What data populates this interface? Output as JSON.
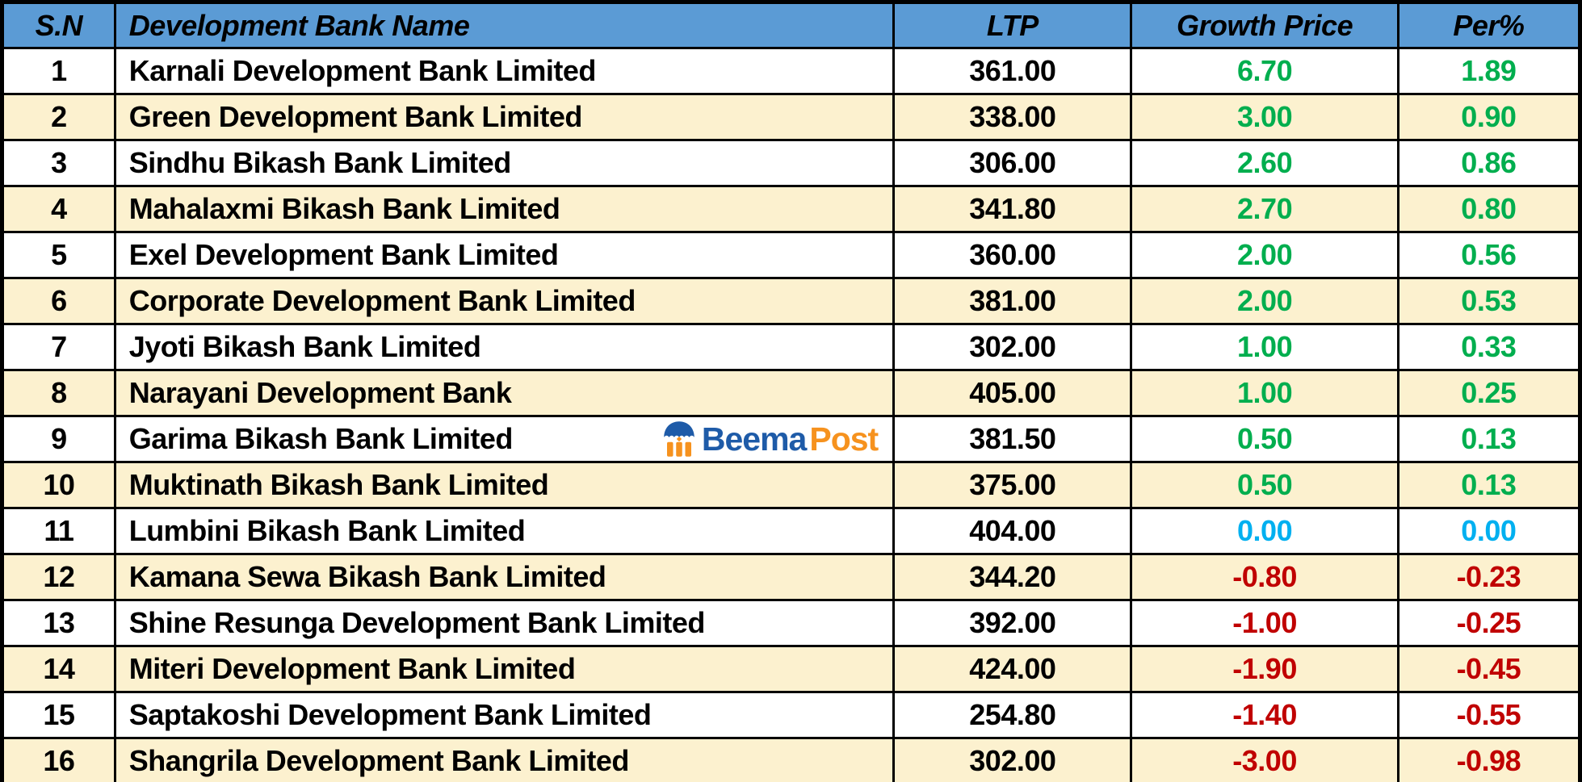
{
  "chart_data": {
    "type": "table",
    "title": "Development Bank LTP / Growth Price table",
    "columns": [
      "S.N",
      "Development Bank Name",
      "LTP",
      "Growth Price",
      "Per%"
    ],
    "rows": [
      {
        "sn": "1",
        "name": "Karnali Development Bank Limited",
        "ltp": "361.00",
        "growth": "6.70",
        "per": "1.89",
        "trend": "up"
      },
      {
        "sn": "2",
        "name": "Green Development Bank Limited",
        "ltp": "338.00",
        "growth": "3.00",
        "per": "0.90",
        "trend": "up"
      },
      {
        "sn": "3",
        "name": "Sindhu Bikash Bank Limited",
        "ltp": "306.00",
        "growth": "2.60",
        "per": "0.86",
        "trend": "up"
      },
      {
        "sn": "4",
        "name": "Mahalaxmi Bikash Bank Limited",
        "ltp": "341.80",
        "growth": "2.70",
        "per": "0.80",
        "trend": "up"
      },
      {
        "sn": "5",
        "name": "Exel Development Bank Limited",
        "ltp": "360.00",
        "growth": "2.00",
        "per": "0.56",
        "trend": "up"
      },
      {
        "sn": "6",
        "name": "Corporate Development Bank Limited",
        "ltp": "381.00",
        "growth": "2.00",
        "per": "0.53",
        "trend": "up"
      },
      {
        "sn": "7",
        "name": "Jyoti Bikash Bank Limited",
        "ltp": "302.00",
        "growth": "1.00",
        "per": "0.33",
        "trend": "up"
      },
      {
        "sn": "8",
        "name": "Narayani Development Bank",
        "ltp": "405.00",
        "growth": "1.00",
        "per": "0.25",
        "trend": "up"
      },
      {
        "sn": "9",
        "name": "Garima Bikash Bank Limited",
        "ltp": "381.50",
        "growth": "0.50",
        "per": "0.13",
        "trend": "up"
      },
      {
        "sn": "10",
        "name": "Muktinath Bikash Bank Limited",
        "ltp": "375.00",
        "growth": "0.50",
        "per": "0.13",
        "trend": "up"
      },
      {
        "sn": "11",
        "name": "Lumbini Bikash Bank Limited",
        "ltp": "404.00",
        "growth": "0.00",
        "per": "0.00",
        "trend": "zero"
      },
      {
        "sn": "12",
        "name": "Kamana Sewa Bikash Bank Limited",
        "ltp": "344.20",
        "growth": "-0.80",
        "per": "-0.23",
        "trend": "down"
      },
      {
        "sn": "13",
        "name": "Shine Resunga Development Bank Limited",
        "ltp": "392.00",
        "growth": "-1.00",
        "per": "-0.25",
        "trend": "down"
      },
      {
        "sn": "14",
        "name": "Miteri Development Bank Limited",
        "ltp": "424.00",
        "growth": "-1.90",
        "per": "-0.45",
        "trend": "down"
      },
      {
        "sn": "15",
        "name": "Saptakoshi Development Bank Limited",
        "ltp": "254.80",
        "growth": "-1.40",
        "per": "-0.55",
        "trend": "down"
      },
      {
        "sn": "16",
        "name": "Shangrila Development Bank Limited",
        "ltp": "302.00",
        "growth": "-3.00",
        "per": "-0.98",
        "trend": "down"
      }
    ],
    "layout": {
      "grid": "all-borders",
      "alternating_row_shading": true,
      "header_row_shaded": true
    }
  },
  "watermark": {
    "brand_first": "Beema",
    "brand_second": "Post",
    "icon": "umbrella-pavilion-icon",
    "anchor_row_sn": "9"
  },
  "colors": {
    "header_bg": "#5B9BD5",
    "row_bg": "#FFFFFF",
    "row_alt_bg": "#FCF1CF",
    "up": "#00AE4E",
    "down": "#C00000",
    "zero": "#00B0F0",
    "border": "#000000",
    "text": "#000000",
    "logo_blue": "#1E5BA8",
    "logo_orange": "#F6921E"
  }
}
